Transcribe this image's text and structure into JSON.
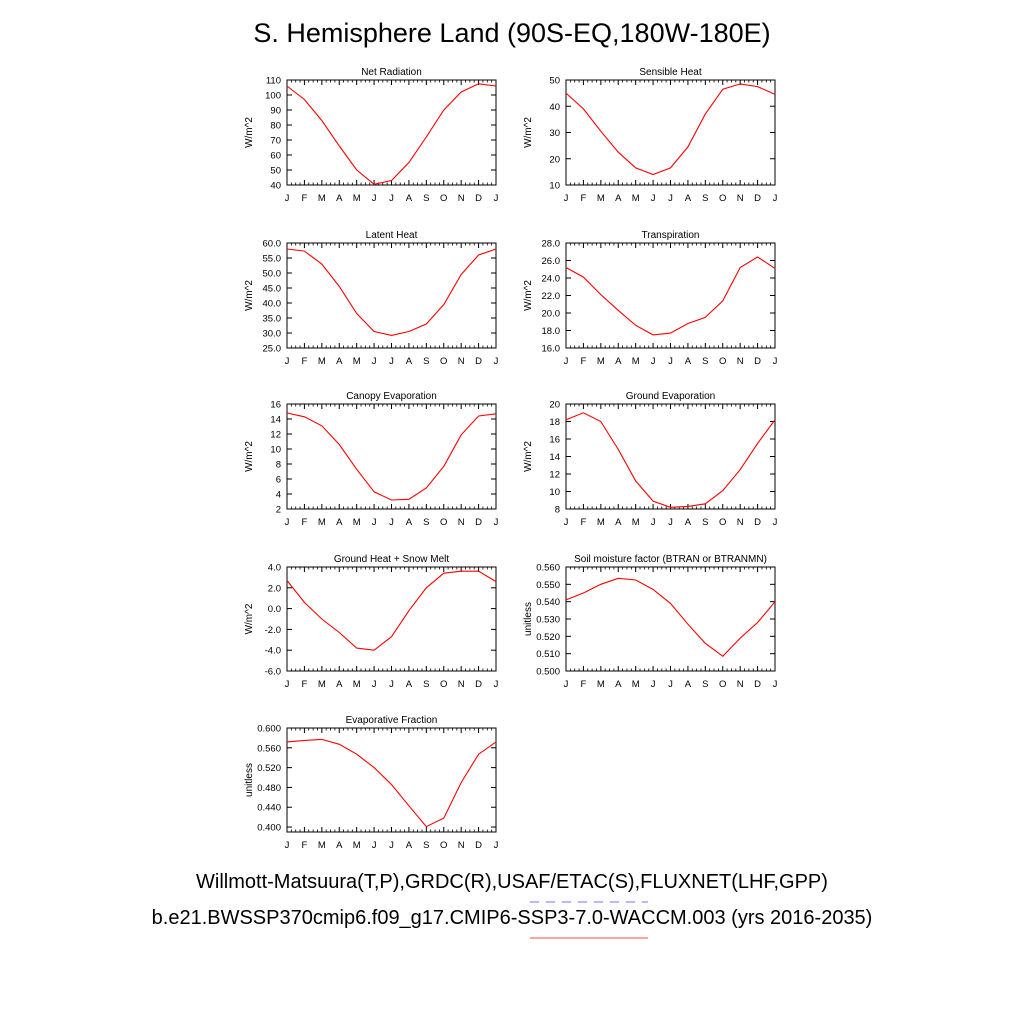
{
  "title": "S. Hemisphere Land (90S-EQ,180W-180E)",
  "footer": {
    "observations": "Willmott-Matsuura(T,P),GRDC(R),USAF/ETAC(S),FLUXNET(LHF,GPP)",
    "model": "b.e21.BWSSP370cmip6.f09_g17.CMIP6-SSP3-7.0-WACCM.003 (yrs 2016-2035)"
  },
  "colors": {
    "series": "#ff0000",
    "obs_dash": "#7070ff",
    "model_line": "#ff6a6a"
  },
  "chart_data": [
    {
      "type": "line",
      "title": "Net Radiation",
      "ylabel": "W/m^2",
      "ylim": [
        40,
        110
      ],
      "yticks": [
        "40",
        "50",
        "60",
        "70",
        "80",
        "90",
        "100",
        "110"
      ],
      "x": [
        "J",
        "F",
        "M",
        "A",
        "M",
        "J",
        "J",
        "A",
        "S",
        "O",
        "N",
        "D",
        "J"
      ],
      "values": [
        106,
        97,
        83,
        66,
        50,
        40.5,
        43,
        55,
        72,
        90,
        102,
        107.5,
        106
      ]
    },
    {
      "type": "line",
      "title": "Sensible Heat",
      "ylabel": "W/m^2",
      "ylim": [
        10,
        50
      ],
      "yticks": [
        "10",
        "20",
        "30",
        "40",
        "50"
      ],
      "x": [
        "J",
        "F",
        "M",
        "A",
        "M",
        "J",
        "J",
        "A",
        "S",
        "O",
        "N",
        "D",
        "J"
      ],
      "values": [
        45,
        39,
        30.5,
        22.5,
        16.5,
        14,
        16.5,
        24.5,
        37,
        46.5,
        48.5,
        47.5,
        44.5
      ]
    },
    {
      "type": "line",
      "title": "Latent Heat",
      "ylabel": "W/m^2",
      "ylim": [
        25,
        60
      ],
      "yticks": [
        "25.0",
        "30.0",
        "35.0",
        "40.0",
        "45.0",
        "50.0",
        "55.0",
        "60.0"
      ],
      "x": [
        "J",
        "F",
        "M",
        "A",
        "M",
        "J",
        "J",
        "A",
        "S",
        "O",
        "N",
        "D",
        "J"
      ],
      "values": [
        58,
        57.3,
        53,
        45.5,
        36.5,
        30.5,
        29.2,
        30.5,
        33,
        39.5,
        49.5,
        56,
        58
      ]
    },
    {
      "type": "line",
      "title": "Transpiration",
      "ylabel": "W/m^2",
      "ylim": [
        16,
        28
      ],
      "yticks": [
        "16.0",
        "18.0",
        "20.0",
        "22.0",
        "24.0",
        "26.0",
        "28.0"
      ],
      "x": [
        "J",
        "F",
        "M",
        "A",
        "M",
        "J",
        "J",
        "A",
        "S",
        "O",
        "N",
        "D",
        "J"
      ],
      "values": [
        25.2,
        24.1,
        22.1,
        20.3,
        18.6,
        17.5,
        17.7,
        18.8,
        19.5,
        21.4,
        25.2,
        26.4,
        25.1
      ]
    },
    {
      "type": "line",
      "title": "Canopy Evaporation",
      "ylabel": "W/m^2",
      "ylim": [
        2,
        16
      ],
      "yticks": [
        "2",
        "4",
        "6",
        "8",
        "10",
        "12",
        "14",
        "16"
      ],
      "x": [
        "J",
        "F",
        "M",
        "A",
        "M",
        "J",
        "J",
        "A",
        "S",
        "O",
        "N",
        "D",
        "J"
      ],
      "values": [
        14.8,
        14.3,
        13.1,
        10.6,
        7.3,
        4.3,
        3.2,
        3.3,
        4.8,
        7.7,
        11.9,
        14.4,
        14.7
      ]
    },
    {
      "type": "line",
      "title": "Ground Evaporation",
      "ylabel": "W/m^2",
      "ylim": [
        8,
        20
      ],
      "yticks": [
        "8",
        "10",
        "12",
        "14",
        "16",
        "18",
        "20"
      ],
      "x": [
        "J",
        "F",
        "M",
        "A",
        "M",
        "J",
        "J",
        "A",
        "S",
        "O",
        "N",
        "D",
        "J"
      ],
      "values": [
        18.2,
        19,
        18,
        14.8,
        11.2,
        8.9,
        8.2,
        8.3,
        8.6,
        10.1,
        12.5,
        15.5,
        18.2
      ]
    },
    {
      "type": "line",
      "title": "Ground Heat + Snow Melt",
      "ylabel": "W/m^2",
      "ylim": [
        -6,
        4
      ],
      "yticks": [
        "-6.0",
        "-4.0",
        "-2.0",
        "0.0",
        "2.0",
        "4.0"
      ],
      "x": [
        "J",
        "F",
        "M",
        "A",
        "M",
        "J",
        "J",
        "A",
        "S",
        "O",
        "N",
        "D",
        "J"
      ],
      "values": [
        2.7,
        0.6,
        -1,
        -2.3,
        -3.8,
        -4,
        -2.7,
        -0.2,
        2,
        3.4,
        3.6,
        3.6,
        2.6
      ]
    },
    {
      "type": "line",
      "title": "Soil moisture factor (BTRAN or BTRANMN)",
      "ylabel": "unitless",
      "ylim": [
        0.5,
        0.56
      ],
      "yticks": [
        "0.500",
        "0.510",
        "0.520",
        "0.530",
        "0.540",
        "0.550",
        "0.560"
      ],
      "x": [
        "J",
        "F",
        "M",
        "A",
        "M",
        "J",
        "J",
        "A",
        "S",
        "O",
        "N",
        "D",
        "J"
      ],
      "values": [
        0.541,
        0.545,
        0.55,
        0.5535,
        0.5525,
        0.547,
        0.539,
        0.527,
        0.516,
        0.5085,
        0.519,
        0.528,
        0.54
      ]
    },
    {
      "type": "line",
      "title": "Evaporative Fraction",
      "ylabel": "unitless",
      "ylim": [
        0.39,
        0.6
      ],
      "yticks": [
        "0.400",
        "0.440",
        "0.480",
        "0.520",
        "0.560",
        "0.600"
      ],
      "x": [
        "J",
        "F",
        "M",
        "A",
        "M",
        "J",
        "J",
        "A",
        "S",
        "O",
        "N",
        "D",
        "J"
      ],
      "values": [
        0.572,
        0.575,
        0.577,
        0.567,
        0.547,
        0.52,
        0.486,
        0.443,
        0.401,
        0.418,
        0.49,
        0.547,
        0.572
      ]
    }
  ]
}
